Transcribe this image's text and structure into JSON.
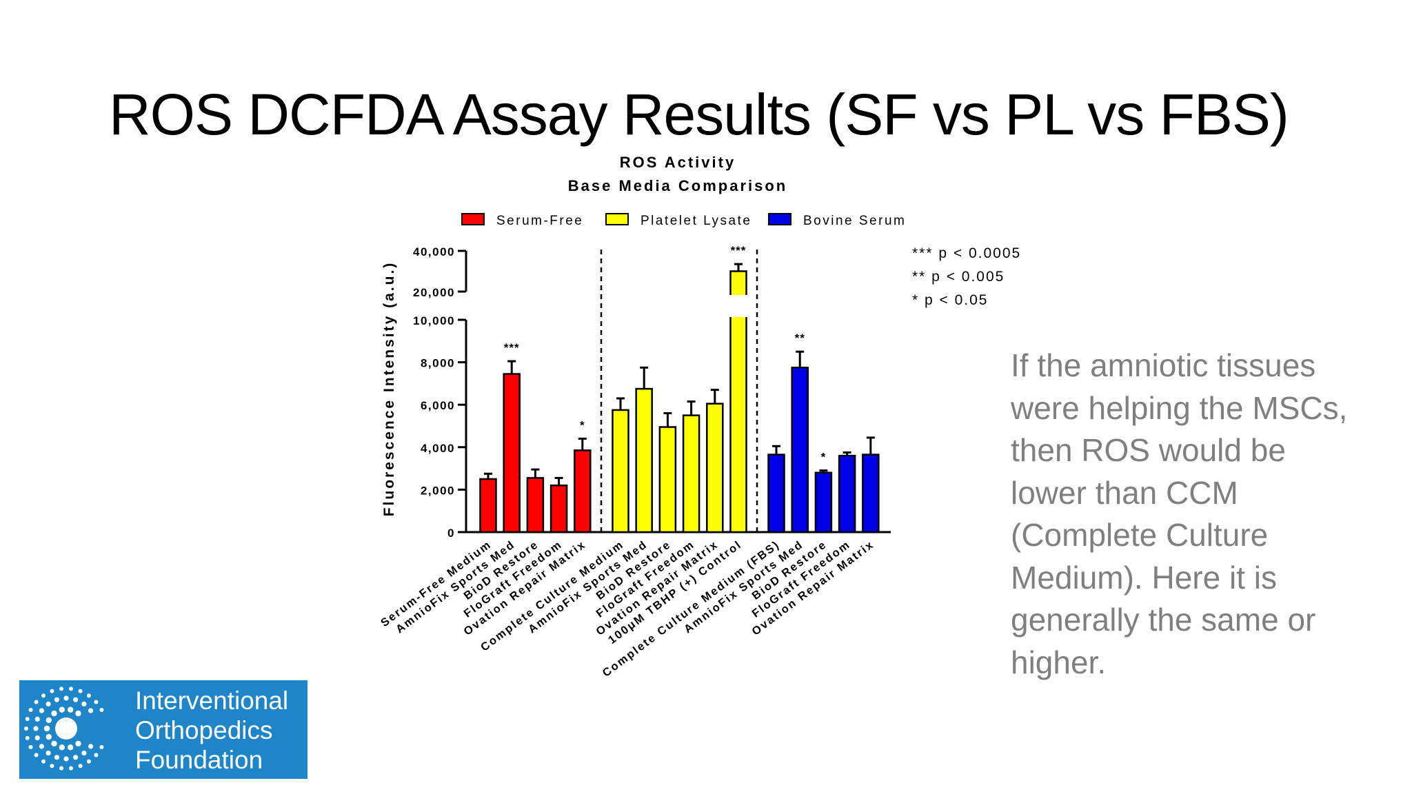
{
  "slide": {
    "title": "ROS DCFDA Assay Results (SF vs PL vs FBS)",
    "note": "If the amniotic tissues were helping the MSCs, then ROS would be lower than CCM (Complete Culture Medium). Here it is generally the same or higher.",
    "logo_lines": [
      "Interventional",
      "Orthopedics",
      "Foundation"
    ]
  },
  "colors": {
    "serum_free": "#ff0000",
    "platelet_lysate": "#ffff00",
    "bovine_serum": "#0000e6",
    "note_text": "#7f7f7f",
    "logo_bg": "#1e86c8"
  },
  "chart_data": {
    "type": "bar",
    "title": "ROS Activity",
    "subtitle": "Base  Media Comparison",
    "ylabel": "Fluorescence Intensity (a.u.)",
    "xlabel": "",
    "y_axis_break": true,
    "ylim_lower": [
      0,
      10000
    ],
    "ylim_upper": [
      20000,
      40000
    ],
    "yticks_lower": [
      "0",
      "2,000",
      "4,000",
      "6,000",
      "8,000",
      "10,000"
    ],
    "yticks_upper": [
      "20,000",
      "40,000"
    ],
    "legend": [
      "Serum-Free",
      "Platelet Lysate",
      "Bovine Serum"
    ],
    "significance_key": [
      "*** p < 0.0005",
      "**  p < 0.005",
      "*   p < 0.05"
    ],
    "groups": [
      {
        "name": "Serum-Free",
        "bars": [
          {
            "label": "Serum-Free Medium",
            "value": 2500,
            "error": 250,
            "sig": ""
          },
          {
            "label": "AmnioFix Sports Med",
            "value": 7450,
            "error": 600,
            "sig": "***"
          },
          {
            "label": "BioD Restore",
            "value": 2550,
            "error": 400,
            "sig": ""
          },
          {
            "label": "FloGraft Freedom",
            "value": 2200,
            "error": 350,
            "sig": ""
          },
          {
            "label": "Ovation Repair Matrix",
            "value": 3850,
            "error": 550,
            "sig": "*"
          }
        ]
      },
      {
        "name": "Platelet Lysate",
        "bars": [
          {
            "label": "Complete Culture Medium",
            "value": 5750,
            "error": 550,
            "sig": ""
          },
          {
            "label": "AmnioFix Sports Med",
            "value": 6750,
            "error": 1000,
            "sig": ""
          },
          {
            "label": "BioD Restore",
            "value": 4950,
            "error": 650,
            "sig": ""
          },
          {
            "label": "FloGraft Freedom",
            "value": 5500,
            "error": 650,
            "sig": ""
          },
          {
            "label": "Ovation Repair Matrix",
            "value": 6050,
            "error": 650,
            "sig": ""
          },
          {
            "label": "100μM TBHP (+) Control",
            "value": 30000,
            "error": 3500,
            "sig": "***"
          }
        ]
      },
      {
        "name": "Bovine Serum",
        "bars": [
          {
            "label": "Complete Culture Medium (FBS)",
            "value": 3650,
            "error": 400,
            "sig": ""
          },
          {
            "label": "AmnioFix Sports Med",
            "value": 7750,
            "error": 750,
            "sig": "**"
          },
          {
            "label": "BioD Restore",
            "value": 2800,
            "error": 100,
            "sig": "*"
          },
          {
            "label": "FloGraft Freedom",
            "value": 3600,
            "error": 150,
            "sig": ""
          },
          {
            "label": "Ovation Repair Matrix",
            "value": 3650,
            "error": 800,
            "sig": ""
          }
        ]
      }
    ]
  }
}
